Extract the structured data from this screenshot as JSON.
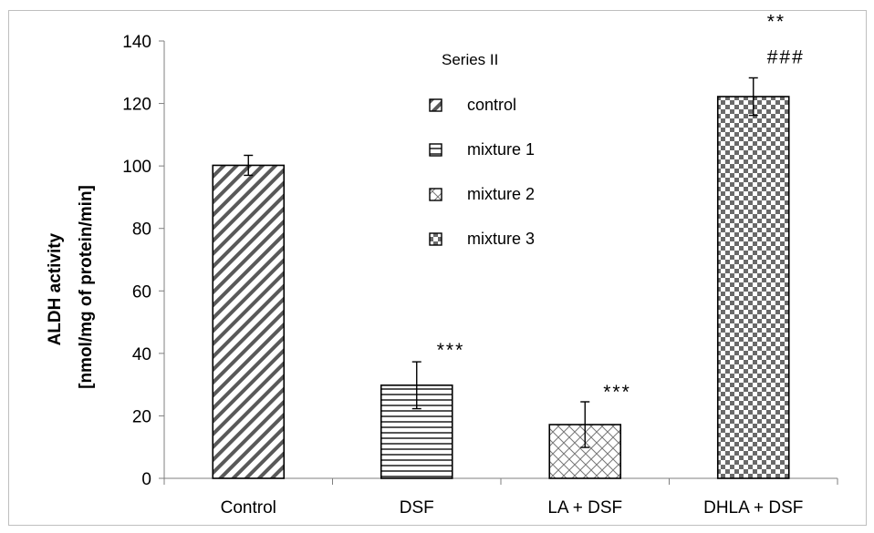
{
  "chart_data": {
    "type": "bar",
    "ylabel_lines": [
      "ALDH activity",
      "[nmol/mg of protein/min]"
    ],
    "categories": [
      "Control",
      "DSF",
      "LA + DSF",
      "DHLA + DSF"
    ],
    "values": [
      100.2,
      29.8,
      17.2,
      122.2
    ],
    "errors": [
      3.2,
      7.5,
      7.3,
      6.0
    ],
    "ylim": [
      0,
      140
    ],
    "yticks": [
      0,
      20,
      40,
      60,
      80,
      100,
      120,
      140
    ],
    "ytick_labels": [
      "0",
      "20",
      "40",
      "60",
      "80",
      "100",
      "120",
      "140"
    ],
    "grid": false,
    "patterns": [
      "diag-stripes",
      "horiz-stripes",
      "crosshatch",
      "checker"
    ],
    "significance": [
      {
        "category": "DSF",
        "text": "***"
      },
      {
        "category": "LA + DSF",
        "text": "***"
      },
      {
        "category": "DHLA + DSF",
        "text": "**"
      },
      {
        "category": "DHLA + DSF",
        "text": "###"
      }
    ],
    "legend": {
      "title": "Series II",
      "position": "top-center",
      "entries": [
        {
          "label": "control",
          "pattern": "diag-stripes"
        },
        {
          "label": "mixture 1",
          "pattern": "horiz-stripes"
        },
        {
          "label": "mixture 2",
          "pattern": "crosshatch"
        },
        {
          "label": "mixture 3",
          "pattern": "checker"
        }
      ]
    },
    "colors": {
      "bar_stroke": "#000000",
      "pattern_ink": "#555555",
      "axis": "#7f7f7f"
    }
  }
}
